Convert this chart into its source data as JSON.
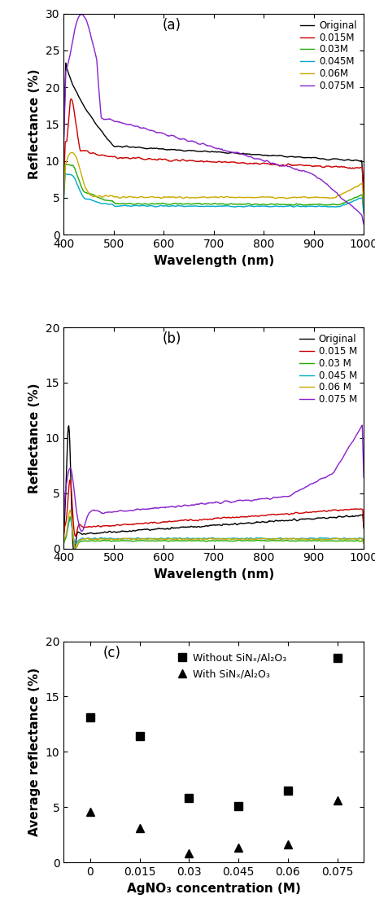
{
  "panel_a": {
    "title": "(a)",
    "ylabel": "Reflectance (%)",
    "xlabel": "Wavelength (nm)",
    "ylim": [
      0,
      30
    ],
    "xlim": [
      400,
      1000
    ],
    "yticks": [
      0,
      5,
      10,
      15,
      20,
      25,
      30
    ],
    "xticks": [
      400,
      500,
      600,
      700,
      800,
      900,
      1000
    ],
    "legend_labels": [
      "Original",
      "0.015M",
      "0.03M",
      "0.045M",
      "0.06M",
      "0.075M"
    ],
    "line_colors": [
      "#000000",
      "#cc0000",
      "#22aa00",
      "#00aacc",
      "#ccaa00",
      "#8822cc"
    ]
  },
  "panel_b": {
    "title": "(b)",
    "ylabel": "Reflectance (%)",
    "xlabel": "Wavelength (nm)",
    "ylim": [
      0,
      20
    ],
    "xlim": [
      400,
      1000
    ],
    "yticks": [
      0,
      5,
      10,
      15,
      20
    ],
    "xticks": [
      400,
      500,
      600,
      700,
      800,
      900,
      1000
    ],
    "legend_labels": [
      "Original",
      "0.015 M",
      "0.03 M",
      "0.045 M",
      "0.06 M",
      "0.075 M"
    ],
    "line_colors": [
      "#000000",
      "#cc0000",
      "#22aa00",
      "#00aacc",
      "#ccaa00",
      "#8822cc"
    ]
  },
  "panel_c": {
    "title": "(c)",
    "ylabel": "Average reflectance (%)",
    "xlabel": "AgNO₃ concentration (M)",
    "ylim": [
      0,
      20
    ],
    "xlim": [
      -0.008,
      0.083
    ],
    "yticks": [
      0,
      5,
      10,
      15,
      20
    ],
    "xticks": [
      0,
      0.015,
      0.03,
      0.045,
      0.06,
      0.075
    ],
    "xtick_labels": [
      "0",
      "0.015",
      "0.03",
      "0.045",
      "0.06",
      "0.075"
    ],
    "without_x": [
      0,
      0.015,
      0.03,
      0.045,
      0.06,
      0.075
    ],
    "without_y": [
      13.1,
      11.4,
      5.8,
      5.1,
      6.5,
      18.5
    ],
    "with_x": [
      0,
      0.015,
      0.03,
      0.045,
      0.06,
      0.075
    ],
    "with_y": [
      4.6,
      3.1,
      0.85,
      1.35,
      1.65,
      5.6
    ],
    "legend_labels": [
      "Without SiNₓ/Al₂O₃",
      "With SiNₓ/Al₂O₃"
    ]
  }
}
